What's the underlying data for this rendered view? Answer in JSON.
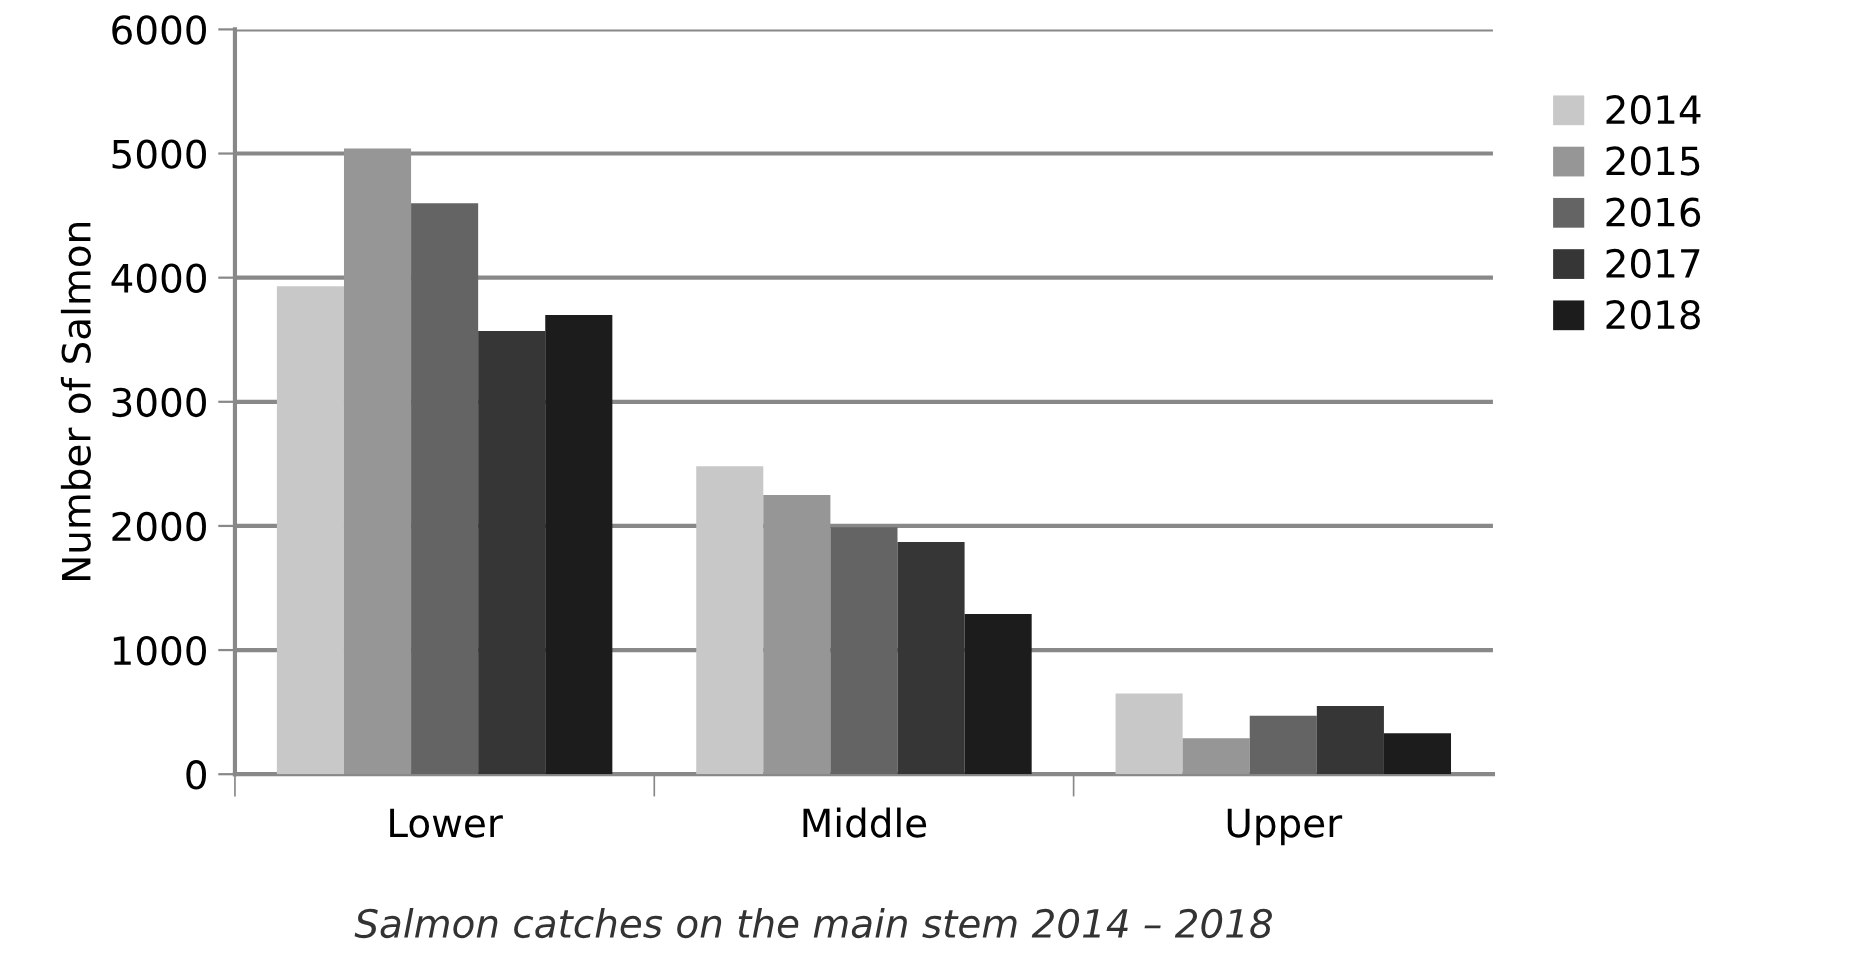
{
  "chart_data": {
    "type": "bar",
    "ylabel": "Number of Salmon",
    "annotations": [
      "Salmon catches on the main stem 2014 – 2018"
    ],
    "categories": [
      "Lower",
      "Middle",
      "Upper"
    ],
    "series": [
      {
        "name": "2014",
        "color": "#c8c8c8",
        "values": [
          3930,
          2480,
          650
        ]
      },
      {
        "name": "2015",
        "color": "#969696",
        "values": [
          5040,
          2250,
          290
        ]
      },
      {
        "name": "2016",
        "color": "#646464",
        "values": [
          4600,
          1990,
          470
        ]
      },
      {
        "name": "2017",
        "color": "#363636",
        "values": [
          3570,
          1870,
          550
        ]
      },
      {
        "name": "2018",
        "color": "#1c1c1c",
        "values": [
          3700,
          1290,
          330
        ]
      }
    ],
    "ylim": [
      0,
      6000
    ],
    "yticks": [
      0,
      1000,
      2000,
      3000,
      4000,
      5000,
      6000
    ],
    "grid": "y",
    "legend": "right"
  }
}
